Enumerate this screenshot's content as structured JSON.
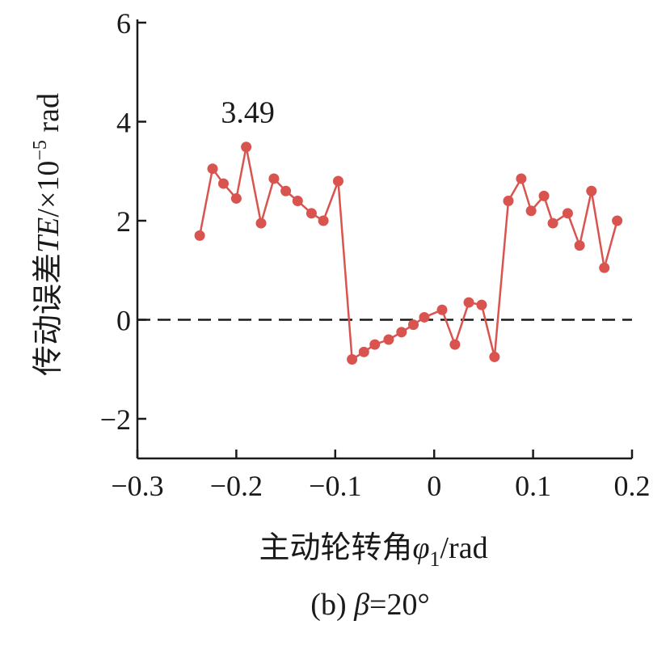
{
  "chart_data": {
    "type": "line",
    "xlabel": {
      "main": "主动轮转角",
      "symbol": "φ",
      "sub": "1",
      "unit": "/rad"
    },
    "ylabel": {
      "main": "传动误差",
      "symbol": "TE",
      "unit_prefix": "/×10",
      "exp": "−5",
      "unit": " rad"
    },
    "caption": {
      "prefix": "(b) ",
      "symbol": "β",
      "value": "=20°"
    },
    "xlim": [
      -0.3,
      0.2
    ],
    "ylim": [
      -2.8,
      6
    ],
    "xticks": [
      -0.3,
      -0.2,
      -0.1,
      0,
      0.1,
      0.2
    ],
    "xtick_labels": [
      "−0.3",
      "−0.2",
      "−0.1",
      "0",
      "0.1",
      "0.2"
    ],
    "yticks": [
      -2,
      0,
      2,
      4,
      6
    ],
    "ytick_labels": [
      "−2",
      "0",
      "2",
      "4",
      "6"
    ],
    "series": [
      {
        "color": "#d9534f",
        "x": [
          -0.237,
          -0.224,
          -0.213,
          -0.2,
          -0.19,
          -0.175,
          -0.162,
          -0.15,
          -0.138,
          -0.124,
          -0.112,
          -0.097,
          -0.083,
          -0.071,
          -0.06,
          -0.046,
          -0.033,
          -0.021,
          -0.01,
          0.008,
          0.021,
          0.035,
          0.048,
          0.061,
          0.075,
          0.088,
          0.098,
          0.111,
          0.12,
          0.135,
          0.147,
          0.159,
          0.172,
          0.185
        ],
        "y": [
          1.7,
          3.05,
          2.75,
          2.45,
          3.49,
          1.95,
          2.85,
          2.6,
          2.4,
          2.15,
          2.0,
          2.8,
          -0.8,
          -0.65,
          -0.5,
          -0.4,
          -0.25,
          -0.1,
          0.05,
          0.2,
          -0.5,
          0.35,
          0.3,
          -0.75,
          2.4,
          2.85,
          2.2,
          2.5,
          1.95,
          2.15,
          1.5,
          2.6,
          1.05,
          2.0
        ]
      }
    ],
    "reference_line": {
      "y": 0,
      "style": "dashed"
    },
    "annotations": [
      {
        "text": "3.49",
        "x": -0.19,
        "y": 3.49
      }
    ],
    "grid": false,
    "legend": "none"
  }
}
